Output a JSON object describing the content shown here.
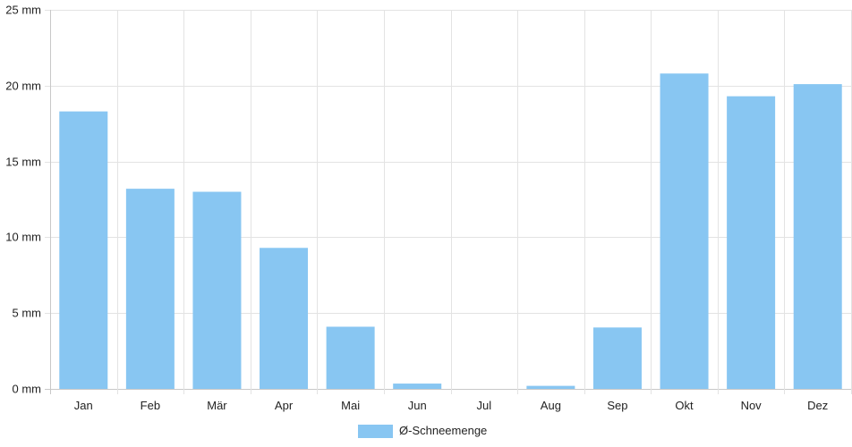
{
  "chart_data": {
    "type": "bar",
    "categories": [
      "Jan",
      "Feb",
      "Mär",
      "Apr",
      "Mai",
      "Jun",
      "Jul",
      "Aug",
      "Sep",
      "Okt",
      "Nov",
      "Dez"
    ],
    "series": [
      {
        "name": "Ø-Schneemenge",
        "values": [
          18.3,
          13.2,
          13.0,
          9.3,
          4.1,
          0.35,
          0,
          0.2,
          4.05,
          20.8,
          19.3,
          20.1
        ],
        "color": "#88c6f2"
      }
    ],
    "y_unit": "mm",
    "ylim": [
      0,
      25
    ],
    "yticks": [
      0,
      5,
      10,
      15,
      20,
      25
    ],
    "ytick_labels": [
      "0 mm",
      "5 mm",
      "10 mm",
      "15 mm",
      "20 mm",
      "25 mm"
    ],
    "grid": true,
    "legend_position": "bottom-center"
  }
}
